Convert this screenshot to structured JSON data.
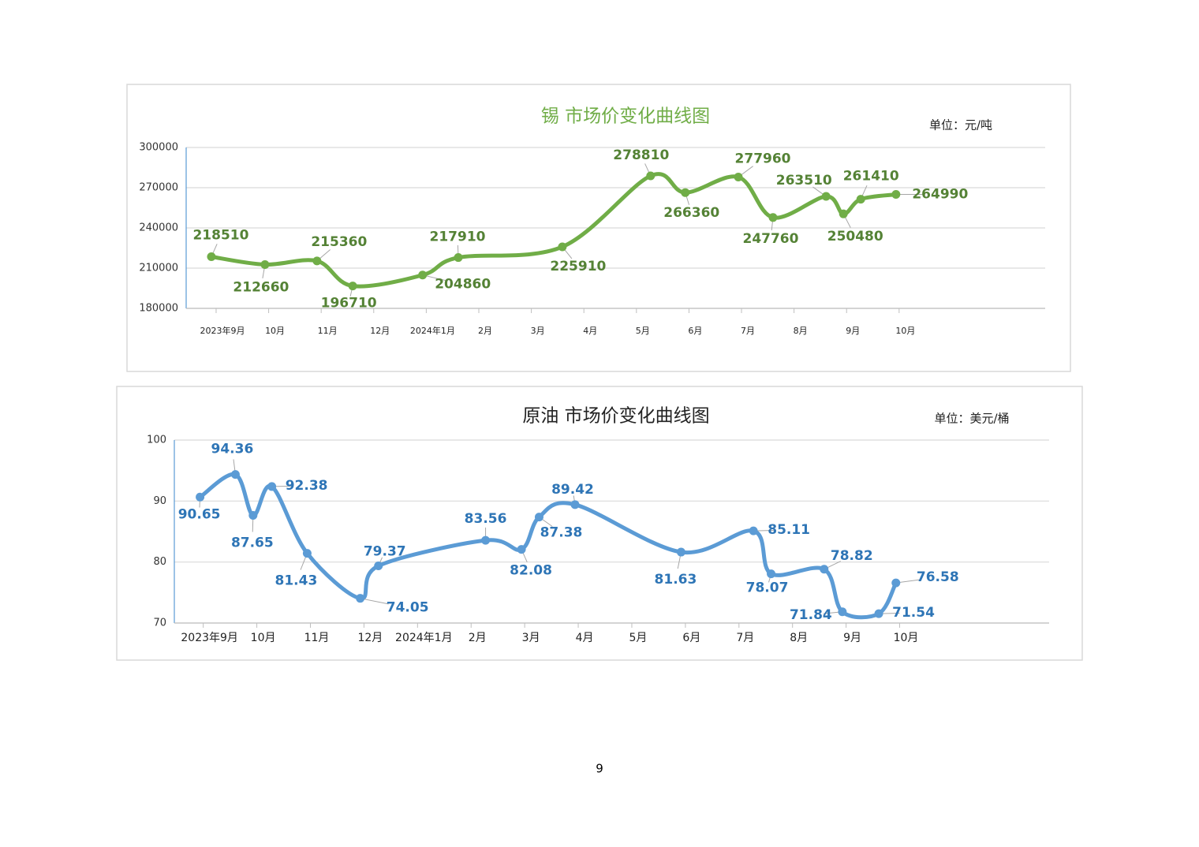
{
  "page": {
    "number": "9"
  },
  "chart_data": [
    {
      "type": "line",
      "title": "锡 市场价变化曲线图",
      "unit": "单位：元/吨",
      "color": "#70ad47",
      "label_color": "#548235",
      "xlim": [
        -0.57,
        15.78
      ],
      "xticks": [
        {
          "value": 0,
          "label": "2023年9月"
        },
        {
          "value": 1,
          "label": "10月"
        },
        {
          "value": 2,
          "label": "11月"
        },
        {
          "value": 3,
          "label": "12月"
        },
        {
          "value": 4,
          "label": "2024年1月"
        },
        {
          "value": 5,
          "label": "2月"
        },
        {
          "value": 6,
          "label": "3月"
        },
        {
          "value": 7,
          "label": "4月"
        },
        {
          "value": 8,
          "label": "5月"
        },
        {
          "value": 9,
          "label": "6月"
        },
        {
          "value": 10,
          "label": "7月"
        },
        {
          "value": 11,
          "label": "8月"
        },
        {
          "value": 12,
          "label": "9月"
        },
        {
          "value": 13,
          "label": "10月"
        }
      ],
      "ylim": [
        180000,
        300000
      ],
      "yticks": [
        180000,
        210000,
        240000,
        270000,
        300000
      ],
      "grid": true,
      "x": [
        -0.09,
        0.93,
        1.92,
        2.6,
        3.93,
        4.61,
        6.59,
        8.27,
        8.93,
        9.94,
        10.6,
        11.61,
        11.94,
        12.27,
        12.94
      ],
      "values": [
        218510,
        212660,
        215360,
        196710,
        204860,
        217910,
        225910,
        278810,
        266360,
        277960,
        247760,
        263510,
        250480,
        261410,
        264990
      ]
    },
    {
      "type": "line",
      "title": "原油 市场价变化曲线图",
      "unit": "单位：美元/桶",
      "color": "#5b9bd5",
      "label_color": "#2e75b6",
      "xlim": [
        -0.54,
        15.79
      ],
      "xticks": [
        {
          "value": 0,
          "label": "2023年9月"
        },
        {
          "value": 1,
          "label": "10月"
        },
        {
          "value": 2,
          "label": "11月"
        },
        {
          "value": 3,
          "label": "12月"
        },
        {
          "value": 4,
          "label": "2024年1月"
        },
        {
          "value": 5,
          "label": "2月"
        },
        {
          "value": 6,
          "label": "3月"
        },
        {
          "value": 7,
          "label": "4月"
        },
        {
          "value": 8,
          "label": "5月"
        },
        {
          "value": 9,
          "label": "6月"
        },
        {
          "value": 10,
          "label": "7月"
        },
        {
          "value": 11,
          "label": "8月"
        },
        {
          "value": 12,
          "label": "9月"
        },
        {
          "value": 13,
          "label": "10月"
        }
      ],
      "ylim": [
        70,
        100
      ],
      "yticks": [
        70,
        80,
        90,
        100
      ],
      "grid": true,
      "x": [
        -0.06,
        0.6,
        0.93,
        1.28,
        1.94,
        2.93,
        3.27,
        5.27,
        5.94,
        6.27,
        6.94,
        8.92,
        10.27,
        10.6,
        11.59,
        11.93,
        12.61,
        12.93
      ],
      "values": [
        90.65,
        94.36,
        87.65,
        92.38,
        81.43,
        74.05,
        79.37,
        83.56,
        82.08,
        87.38,
        89.42,
        81.63,
        85.11,
        78.07,
        78.82,
        71.84,
        71.54,
        76.58
      ]
    }
  ]
}
